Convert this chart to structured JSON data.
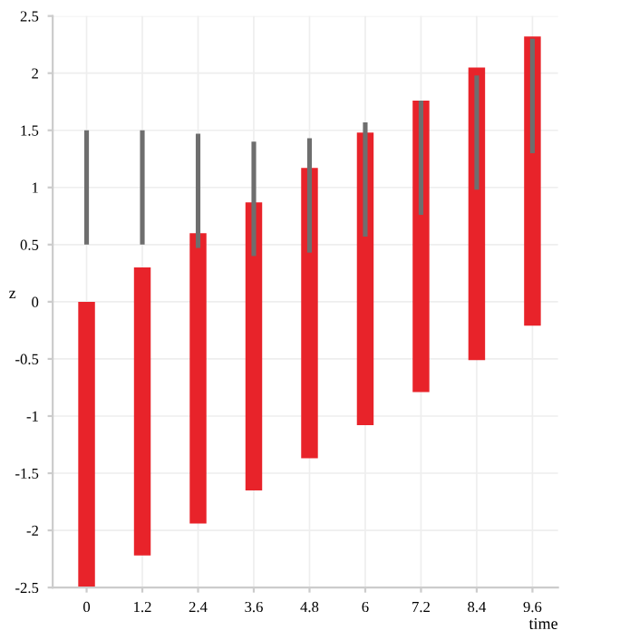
{
  "chart_data": {
    "type": "bar",
    "xlabel": "time",
    "ylabel": "z",
    "x": [
      0,
      1.2,
      2.4,
      3.6,
      4.8,
      6,
      7.2,
      8.4,
      9.6
    ],
    "series": [
      {
        "color": "#e8232a",
        "base": [
          -2.5,
          -2.22,
          -1.94,
          -1.65,
          -1.37,
          -1.08,
          -0.79,
          -0.51,
          -0.21
        ],
        "values": [
          2.5,
          2.52,
          2.54,
          2.52,
          2.54,
          2.56,
          2.55,
          2.56,
          2.53
        ]
      },
      {
        "color": "#6e6e6e",
        "base": [
          0.5,
          0.5,
          0.47,
          0.4,
          0.43,
          0.57,
          0.76,
          0.98,
          1.3
        ],
        "values": [
          1,
          1,
          1,
          1,
          1,
          1,
          1,
          1,
          1
        ]
      }
    ],
    "xlim": [
      -0.73,
      10.15
    ],
    "ylim": [
      -2.5,
      2.5
    ],
    "xticks": [
      0,
      1.2,
      2.4,
      3.6,
      4.8,
      6,
      7.2,
      8.4,
      9.6
    ],
    "yticks": [
      -2.5,
      -2,
      -1.5,
      -1,
      -0.5,
      0,
      0.5,
      1,
      1.5,
      2,
      2.5
    ],
    "grid": true
  }
}
